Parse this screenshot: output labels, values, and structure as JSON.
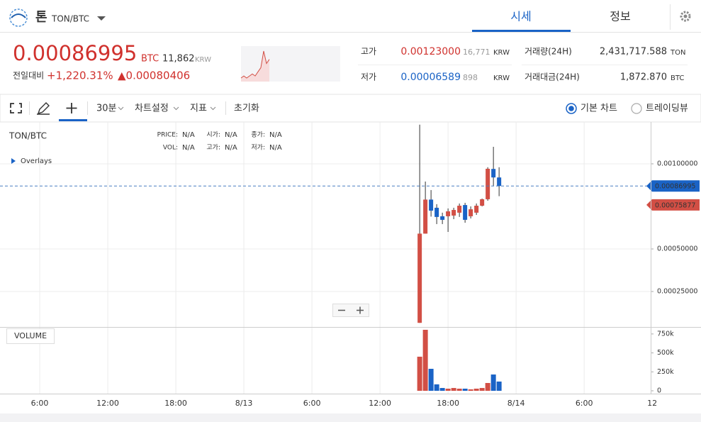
{
  "header": {
    "coin_name": "톤",
    "pair": "TON/BTC",
    "tabs": [
      "시세",
      "정보"
    ]
  },
  "ticker": {
    "price": "0.00086995",
    "price_unit": "BTC",
    "krw_price": "11,862",
    "krw_unit": "KRW",
    "change_label": "전일대비",
    "change_pct": "+1,220.31%",
    "change_abs": "▲0.00080406",
    "sparkline": [
      0.00059,
      0.0006,
      0.00059,
      0.0006,
      0.00061,
      0.0006,
      0.00062,
      0.00064,
      0.00072,
      0.00066,
      0.00068
    ]
  },
  "stats": {
    "high": {
      "label": "고가",
      "value": "0.00123000",
      "krw": "16,771",
      "unit": "KRW"
    },
    "low": {
      "label": "저가",
      "value": "0.00006589",
      "krw": "898",
      "unit": "KRW"
    },
    "volume": {
      "label": "거래량(24H)",
      "value": "2,431,717.588",
      "unit": "TON"
    },
    "amount": {
      "label": "거래대금(24H)",
      "value": "1,872.870",
      "unit": "BTC"
    }
  },
  "toolbar": {
    "interval": "30분",
    "settings": "차트설정",
    "indicators": "지표",
    "reset": "초기화",
    "options": [
      "기본 차트",
      "트레이딩뷰"
    ]
  },
  "chart_data": {
    "type": "candlestick",
    "title": "TON/BTC",
    "overlays_label": "Overlays",
    "volume_label": "VOLUME",
    "legend_fields": [
      {
        "label": "PRICE:",
        "value": "N/A"
      },
      {
        "label": "시가:",
        "value": "N/A"
      },
      {
        "label": "종가:",
        "value": "N/A"
      },
      {
        "label": "VOL:",
        "value": "N/A"
      },
      {
        "label": "고가:",
        "value": "N/A"
      },
      {
        "label": "저가:",
        "value": "N/A"
      }
    ],
    "x": [
      15.5,
      16,
      16.5,
      17,
      17.5,
      18,
      18.5,
      19,
      19.5,
      20,
      20.5,
      21,
      21.5,
      22,
      22.5
    ],
    "open": [
      6.589e-05,
      0.00059,
      0.00079,
      0.000742,
      0.000692,
      0.000692,
      0.000696,
      0.000713,
      0.000758,
      0.000692,
      0.000713,
      0.000754,
      0.000792,
      0.00097,
      0.00092
    ],
    "high": [
      0.00123,
      0.000896,
      0.000846,
      0.000763,
      0.000713,
      0.000738,
      0.000742,
      0.000767,
      0.000771,
      0.00075,
      0.000767,
      0.000796,
      0.00098,
      0.0011,
      0.00098
    ],
    "low": [
      6.589e-05,
      0.00059,
      0.00069,
      0.000646,
      0.000646,
      0.0006,
      0.000675,
      0.000688,
      0.000654,
      0.000679,
      0.0007,
      0.00075,
      0.000783,
      0.00087,
      0.00081
    ],
    "close": [
      0.00059,
      0.00079,
      0.000725,
      0.000688,
      0.000671,
      0.000721,
      0.000729,
      0.000754,
      0.000671,
      0.000733,
      0.000754,
      0.000792,
      0.000971,
      0.00092,
      0.00087
    ],
    "volume": [
      450000,
      805000,
      290000,
      85000,
      37000,
      28000,
      37000,
      28000,
      28000,
      19000,
      28000,
      37000,
      103000,
      215000,
      122000
    ],
    "up_color": "#d24f45",
    "down_color": "#1a63c6",
    "xlim": [
      -21.5,
      40.3
    ],
    "xticks": [
      {
        "value": -18,
        "label": "6:00"
      },
      {
        "value": -12,
        "label": "12:00"
      },
      {
        "value": -6,
        "label": "18:00"
      },
      {
        "value": 0,
        "label": "8/13"
      },
      {
        "value": 6,
        "label": "6:00"
      },
      {
        "value": 12,
        "label": "12:00"
      },
      {
        "value": 18,
        "label": "18:00"
      },
      {
        "value": 24,
        "label": "8/14"
      },
      {
        "value": 30,
        "label": "6:00"
      },
      {
        "value": 36,
        "label": "12"
      }
    ],
    "ylim": [
      4.17e-05,
      0.0012458
    ],
    "yticks": [
      {
        "value": 0.00025,
        "label": "0.00025000"
      },
      {
        "value": 0.0005,
        "label": "0.00050000"
      },
      {
        "value": 0.001,
        "label": "0.00100000"
      }
    ],
    "volume_ylim": [
      0,
      833000
    ],
    "volume_ticks": [
      0,
      {
        "value": 250000,
        "label": "250k"
      },
      {
        "value": 500000,
        "label": "500k"
      },
      {
        "value": 750000,
        "label": "750k"
      }
    ],
    "last_price": 0.00086995,
    "marker_price": 0.00075877,
    "grid": true
  }
}
